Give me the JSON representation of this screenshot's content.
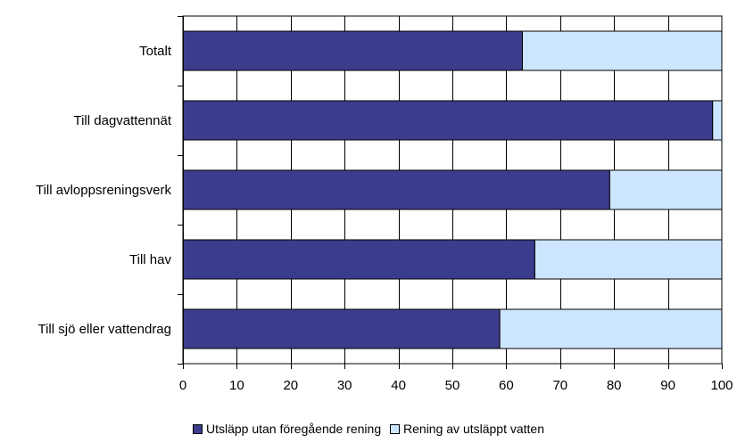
{
  "chart_data": {
    "type": "bar",
    "orientation": "horizontal",
    "stacked": true,
    "categories": [
      "Totalt",
      "Till dagvattennät",
      "Till avloppsreningsverk",
      "Till hav",
      "Till sjö eller vattendrag"
    ],
    "series": [
      {
        "name": "Utsläpp utan föregående rening",
        "values": [
          63,
          98.3,
          79.2,
          65.3,
          58.8
        ],
        "color": "#3c3c8c"
      },
      {
        "name": "Rening av utsläppt vatten",
        "values": [
          37,
          1.7,
          20.8,
          34.7,
          41.2
        ],
        "color": "#cde6ff"
      }
    ],
    "xlim": [
      0,
      100
    ],
    "xticks": [
      0,
      10,
      20,
      30,
      40,
      50,
      60,
      70,
      80,
      90,
      100
    ],
    "grid": true,
    "legend_position": "bottom"
  }
}
